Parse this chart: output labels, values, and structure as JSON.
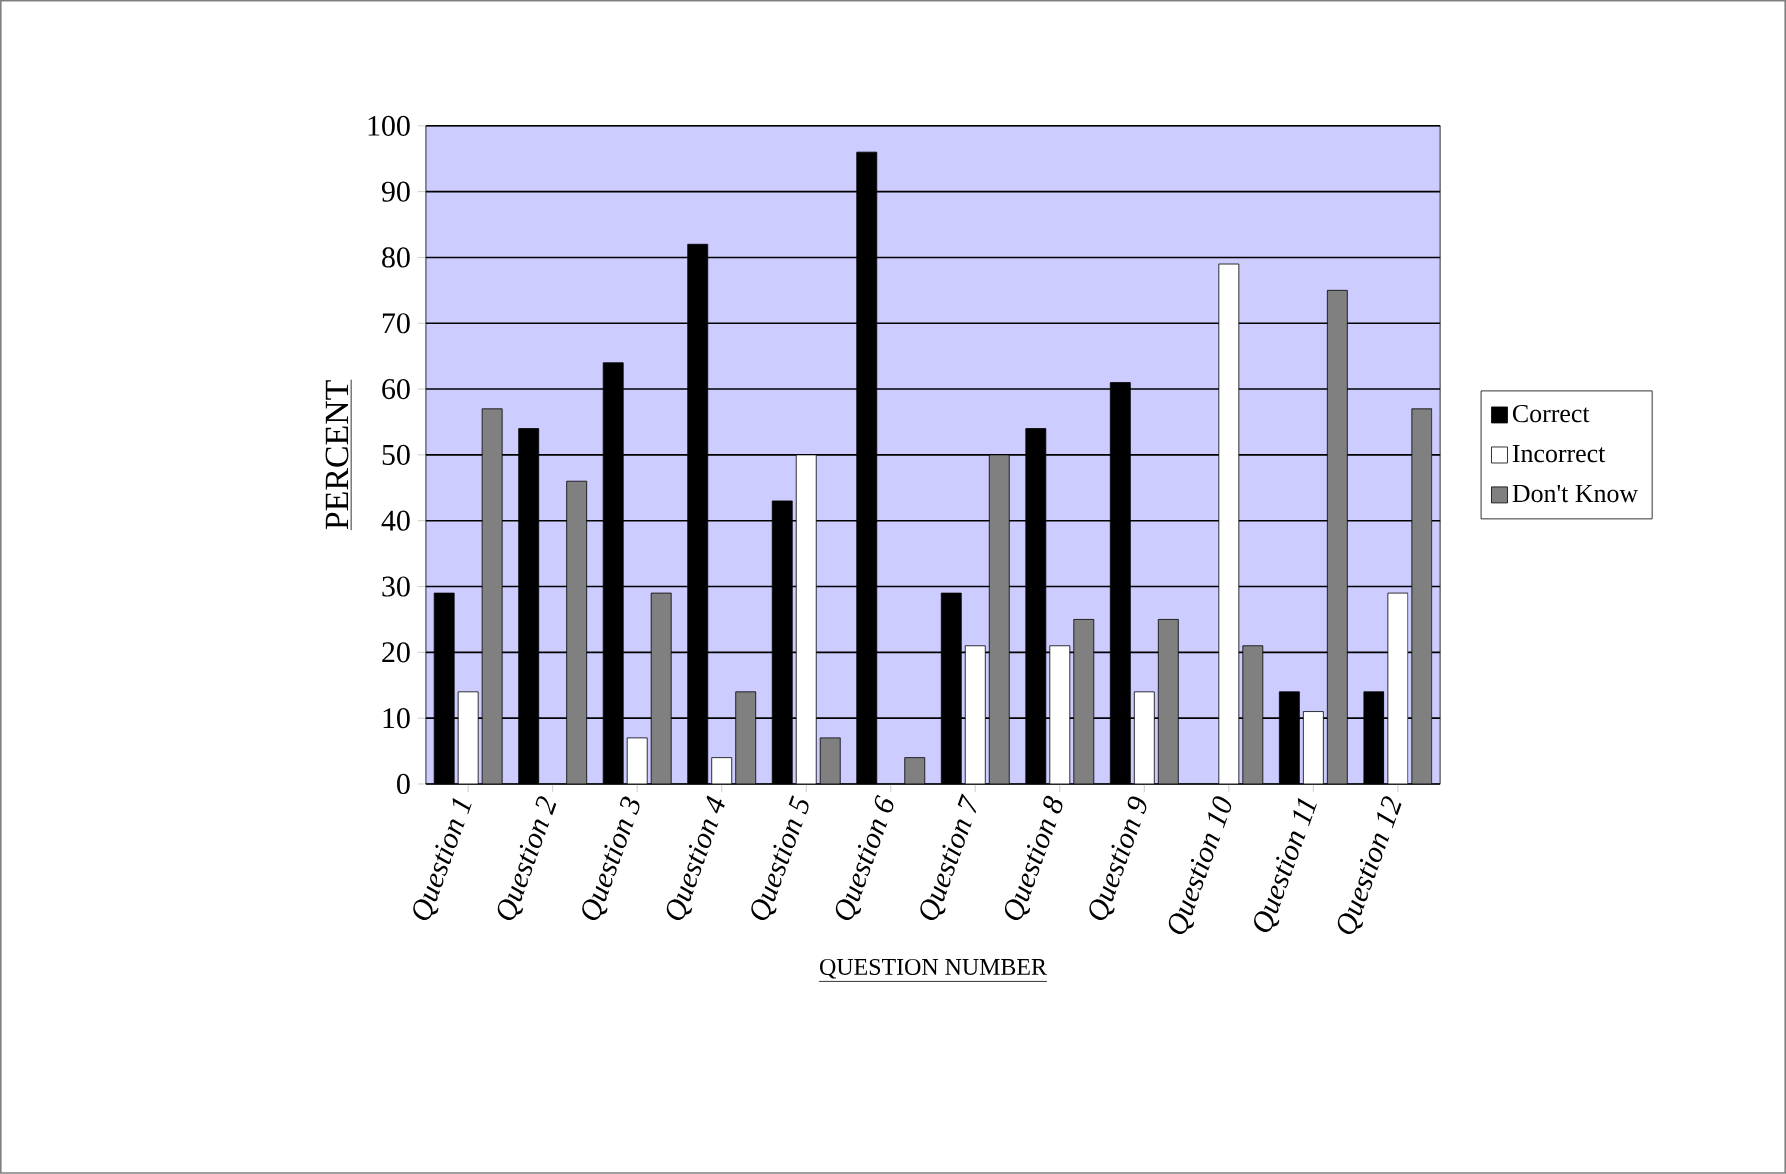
{
  "chart_data": {
    "type": "bar",
    "xlabel": "QUESTION NUMBER",
    "ylabel": "PERCENT",
    "categories": [
      "Question 1",
      "Question 2",
      "Question 3",
      "Question 4",
      "Question 5",
      "Question 6",
      "Question 7",
      "Question 8",
      "Question 9",
      "Question 10",
      "Question 11",
      "Question 12"
    ],
    "series": [
      {
        "name": "Correct",
        "color": "#000000",
        "values": [
          29,
          54,
          64,
          82,
          43,
          96,
          29,
          54,
          61,
          0,
          14,
          14
        ]
      },
      {
        "name": "Incorrect",
        "color": "#ffffff",
        "values": [
          14,
          0,
          7,
          4,
          50,
          0,
          21,
          21,
          14,
          79,
          11,
          29
        ]
      },
      {
        "name": "Don't Know",
        "color": "#808080",
        "values": [
          57,
          46,
          29,
          14,
          7,
          4,
          50,
          25,
          25,
          21,
          75,
          57
        ]
      }
    ],
    "ylim": [
      0,
      100
    ],
    "yticks": [
      0,
      10,
      20,
      30,
      40,
      50,
      60,
      70,
      80,
      90,
      100
    ],
    "grid": "y",
    "legend": "right"
  }
}
